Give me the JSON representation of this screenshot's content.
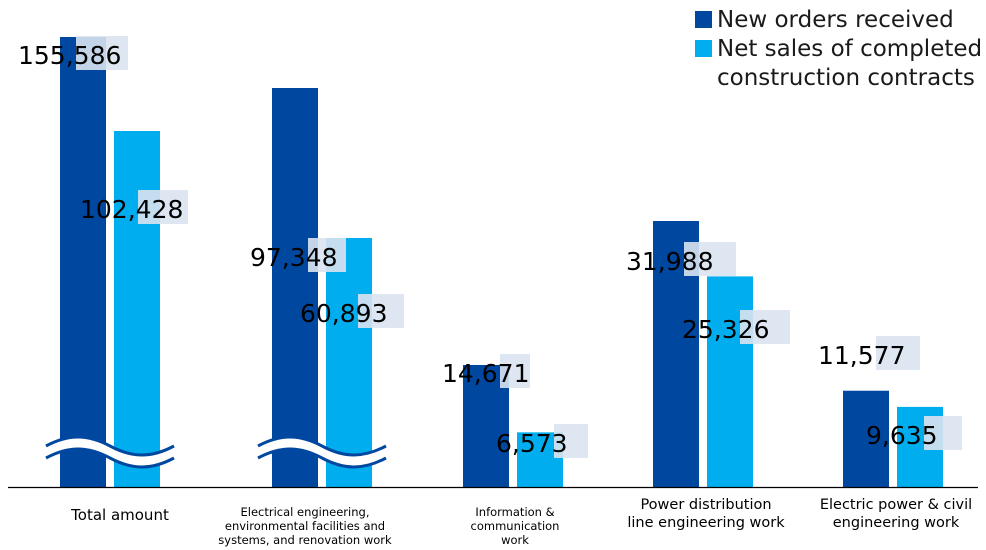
{
  "chart_data": {
    "type": "bar",
    "broken_axis": true,
    "categories": [
      "Total amount",
      "Electrical engineering,\nenvironmental facilities and\nsystems, and renovation work",
      "Information &\ncommunication\nwork",
      "Power distribution\nline engineering work",
      "Electric power & civil\nengineering work"
    ],
    "series": [
      {
        "name": "New orders received",
        "color": "#0047A0",
        "values": [
          155586,
          97348,
          14671,
          31988,
          11577
        ],
        "value_labels": [
          "155,586",
          "97,348",
          "14,671",
          "31,988",
          "11,577"
        ]
      },
      {
        "name": "Net sales of completed\nconstruction contracts",
        "color": "#00AEEF",
        "values": [
          102428,
          60893,
          6573,
          25326,
          9635
        ],
        "value_labels": [
          "102,428",
          "60,893",
          "6,573",
          "25,326",
          "9,635"
        ]
      }
    ],
    "legend_position": "top-right",
    "grid": false,
    "title": "",
    "xlabel": "",
    "ylabel": ""
  }
}
